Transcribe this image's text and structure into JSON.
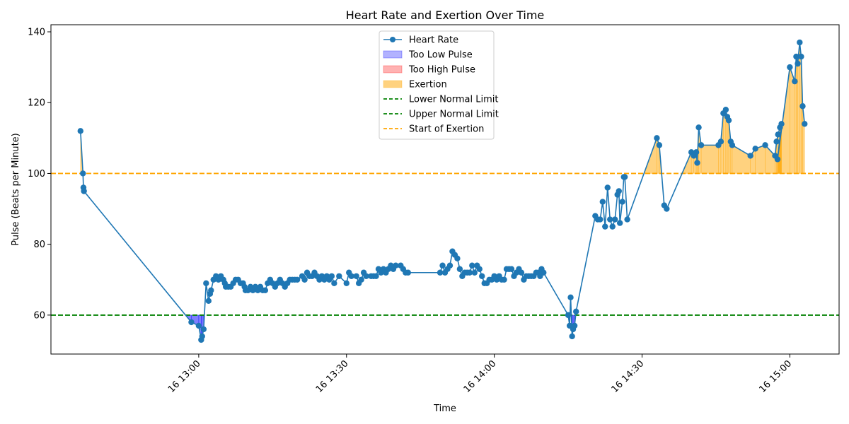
{
  "chart_data": {
    "type": "line",
    "title": "Heart Rate and Exertion Over Time",
    "xlabel": "Time",
    "ylabel": "Pulse (Beats per Minute)",
    "ylim": [
      49,
      142
    ],
    "xlim": [
      "12:30",
      "15:10"
    ],
    "y_ticks": [
      60,
      80,
      100,
      120,
      140
    ],
    "x_ticks": [
      {
        "time": "13:00",
        "label": "16 13:00"
      },
      {
        "time": "13:30",
        "label": "16 13:30"
      },
      {
        "time": "14:00",
        "label": "16 14:00"
      },
      {
        "time": "14:30",
        "label": "16 14:30"
      },
      {
        "time": "15:00",
        "label": "16 15:00"
      }
    ],
    "grid": false,
    "legend_position": "top-center",
    "lower_normal_limit": 60,
    "upper_normal_limit": 60,
    "exertion_start": 100,
    "colors": {
      "heart_rate": "#1f77b4",
      "too_low": "#0000ff",
      "too_high": "#ff0000",
      "exertion": "#ffa500",
      "normal_limit": "#008000",
      "exertion_line": "#ffa500"
    },
    "legend": [
      {
        "label": "Heart Rate",
        "kind": "line-marker",
        "color": "#1f77b4"
      },
      {
        "label": "Too Low Pulse",
        "kind": "patch",
        "color": "#0000ff"
      },
      {
        "label": "Too High Pulse",
        "kind": "patch",
        "color": "#ff0000"
      },
      {
        "label": "Exertion",
        "kind": "patch",
        "color": "#ffa500"
      },
      {
        "label": "Lower Normal Limit",
        "kind": "dashed",
        "color": "#008000"
      },
      {
        "label": "Upper Normal Limit",
        "kind": "dashed",
        "color": "#008000"
      },
      {
        "label": "Start of Exertion",
        "kind": "dashed",
        "color": "#ffa500"
      }
    ],
    "series": [
      {
        "name": "Heart Rate",
        "points": [
          [
            "12:36",
            112
          ],
          [
            "12:36.5",
            100
          ],
          [
            "12:36.6",
            96
          ],
          [
            "12:36.7",
            95
          ],
          [
            "12:58.5",
            58
          ],
          [
            "13:00",
            57
          ],
          [
            "13:00.5",
            53
          ],
          [
            "13:00.7",
            54
          ],
          [
            "13:01",
            56
          ],
          [
            "13:01.5",
            69
          ],
          [
            "13:02",
            64
          ],
          [
            "13:02.3",
            66
          ],
          [
            "13:02.5",
            67
          ],
          [
            "13:03",
            70
          ],
          [
            "13:03.5",
            71
          ],
          [
            "13:04",
            70
          ],
          [
            "13:04.5",
            71
          ],
          [
            "13:05",
            70
          ],
          [
            "13:05.3",
            69
          ],
          [
            "13:05.5",
            68
          ],
          [
            "13:06",
            68
          ],
          [
            "13:06.5",
            68
          ],
          [
            "13:07",
            69
          ],
          [
            "13:07.5",
            70
          ],
          [
            "13:08",
            70
          ],
          [
            "13:08.5",
            69
          ],
          [
            "13:09",
            69
          ],
          [
            "13:09.3",
            68
          ],
          [
            "13:09.5",
            67
          ],
          [
            "13:10",
            67
          ],
          [
            "13:10.5",
            68
          ],
          [
            "13:11",
            67
          ],
          [
            "13:11.5",
            68
          ],
          [
            "13:12",
            67
          ],
          [
            "13:12.5",
            68
          ],
          [
            "13:13",
            67
          ],
          [
            "13:13.5",
            67
          ],
          [
            "13:14",
            69
          ],
          [
            "13:14.5",
            70
          ],
          [
            "13:15",
            69
          ],
          [
            "13:15.5",
            68
          ],
          [
            "13:16",
            69
          ],
          [
            "13:16.5",
            70
          ],
          [
            "13:17",
            69
          ],
          [
            "13:17.5",
            68
          ],
          [
            "13:18",
            69
          ],
          [
            "13:18.5",
            70
          ],
          [
            "13:19",
            70
          ],
          [
            "13:19.5",
            70
          ],
          [
            "13:20",
            70
          ],
          [
            "13:21",
            71
          ],
          [
            "13:21.5",
            70
          ],
          [
            "13:22",
            72
          ],
          [
            "13:22.5",
            71
          ],
          [
            "13:23",
            71
          ],
          [
            "13:23.5",
            72
          ],
          [
            "13:24",
            71
          ],
          [
            "13:24.5",
            70
          ],
          [
            "13:25",
            71
          ],
          [
            "13:25.5",
            70
          ],
          [
            "13:26",
            71
          ],
          [
            "13:26.5",
            70
          ],
          [
            "13:27",
            71
          ],
          [
            "13:27.5",
            69
          ],
          [
            "13:28.5",
            71
          ],
          [
            "13:30",
            69
          ],
          [
            "13:30.5",
            72
          ],
          [
            "13:31",
            71
          ],
          [
            "13:32",
            71
          ],
          [
            "13:32.5",
            69
          ],
          [
            "13:33",
            70
          ],
          [
            "13:33.5",
            72
          ],
          [
            "13:34",
            71
          ],
          [
            "13:35",
            71
          ],
          [
            "13:35.5",
            71
          ],
          [
            "13:36",
            71
          ],
          [
            "13:36.5",
            73
          ],
          [
            "13:37",
            72
          ],
          [
            "13:37.5",
            73
          ],
          [
            "13:38",
            72
          ],
          [
            "13:38.5",
            73
          ],
          [
            "13:39",
            74
          ],
          [
            "13:39.5",
            73
          ],
          [
            "13:40",
            74
          ],
          [
            "13:41",
            74
          ],
          [
            "13:41.5",
            73
          ],
          [
            "13:42",
            72
          ],
          [
            "13:42.5",
            72
          ],
          [
            "13:49",
            72
          ],
          [
            "13:49.5",
            74
          ],
          [
            "13:50",
            72
          ],
          [
            "13:50.5",
            73
          ],
          [
            "13:51",
            74
          ],
          [
            "13:51.5",
            78
          ],
          [
            "13:52",
            77
          ],
          [
            "13:52.5",
            76
          ],
          [
            "13:53",
            73
          ],
          [
            "13:53.5",
            71
          ],
          [
            "13:54",
            72
          ],
          [
            "13:54.5",
            72
          ],
          [
            "13:55",
            72
          ],
          [
            "13:55.5",
            74
          ],
          [
            "13:56",
            72
          ],
          [
            "13:56.5",
            74
          ],
          [
            "13:57",
            73
          ],
          [
            "13:57.5",
            71
          ],
          [
            "13:58",
            69
          ],
          [
            "13:58.5",
            69
          ],
          [
            "13:59",
            70
          ],
          [
            "13:59.5",
            70
          ],
          [
            "14:00",
            71
          ],
          [
            "14:00.5",
            70
          ],
          [
            "14:01",
            71
          ],
          [
            "14:01.5",
            70
          ],
          [
            "14:02",
            70
          ],
          [
            "14:02.5",
            73
          ],
          [
            "14:03",
            73
          ],
          [
            "14:03.5",
            73
          ],
          [
            "14:04",
            71
          ],
          [
            "14:04.5",
            72
          ],
          [
            "14:05",
            73
          ],
          [
            "14:05.5",
            72
          ],
          [
            "14:06",
            70
          ],
          [
            "14:06.5",
            71
          ],
          [
            "14:07",
            71
          ],
          [
            "14:07.5",
            71
          ],
          [
            "14:08",
            71
          ],
          [
            "14:08.5",
            72
          ],
          [
            "14:09",
            72
          ],
          [
            "14:09.3",
            71
          ],
          [
            "14:09.6",
            73
          ],
          [
            "14:10",
            72
          ],
          [
            "14:15",
            60
          ],
          [
            "14:15.3",
            57
          ],
          [
            "14:15.5",
            65
          ],
          [
            "14:15.8",
            54
          ],
          [
            "14:16",
            56
          ],
          [
            "14:16.3",
            57
          ],
          [
            "14:16.6",
            61
          ],
          [
            "14:20.5",
            88
          ],
          [
            "14:21",
            87
          ],
          [
            "14:21.5",
            87
          ],
          [
            "14:22",
            92
          ],
          [
            "14:22.5",
            85
          ],
          [
            "14:23",
            96
          ],
          [
            "14:23.5",
            87
          ],
          [
            "14:24",
            85
          ],
          [
            "14:24.5",
            87
          ],
          [
            "14:25",
            94
          ],
          [
            "14:25.3",
            95
          ],
          [
            "14:25.5",
            86
          ],
          [
            "14:26",
            92
          ],
          [
            "14:26.3",
            99
          ],
          [
            "14:26.5",
            99
          ],
          [
            "14:27",
            87
          ],
          [
            "14:33",
            110
          ],
          [
            "14:33.5",
            108
          ],
          [
            "14:34.5",
            91
          ],
          [
            "14:35",
            90
          ],
          [
            "14:40",
            106
          ],
          [
            "14:40.5",
            105
          ],
          [
            "14:41",
            106
          ],
          [
            "14:41.2",
            103
          ],
          [
            "14:41.5",
            113
          ],
          [
            "14:42",
            108
          ],
          [
            "14:45.5",
            108
          ],
          [
            "14:46",
            109
          ],
          [
            "14:46.5",
            117
          ],
          [
            "14:47",
            118
          ],
          [
            "14:47.3",
            116
          ],
          [
            "14:47.6",
            115
          ],
          [
            "14:48",
            109
          ],
          [
            "14:48.3",
            108
          ],
          [
            "14:52",
            105
          ],
          [
            "14:53",
            107
          ],
          [
            "14:55",
            108
          ],
          [
            "14:57",
            105
          ],
          [
            "14:57.3",
            109
          ],
          [
            "14:57.6",
            111
          ],
          [
            "14:58",
            113
          ],
          [
            "14:58.3",
            114
          ],
          [
            "14:57.5",
            104
          ],
          [
            "15:00",
            130
          ],
          [
            "15:01",
            126
          ],
          [
            "15:01.3",
            133
          ],
          [
            "15:01.6",
            131
          ],
          [
            "15:02",
            137
          ],
          [
            "15:02.3",
            133
          ],
          [
            "15:02.6",
            119
          ],
          [
            "15:03",
            114
          ]
        ]
      }
    ]
  }
}
